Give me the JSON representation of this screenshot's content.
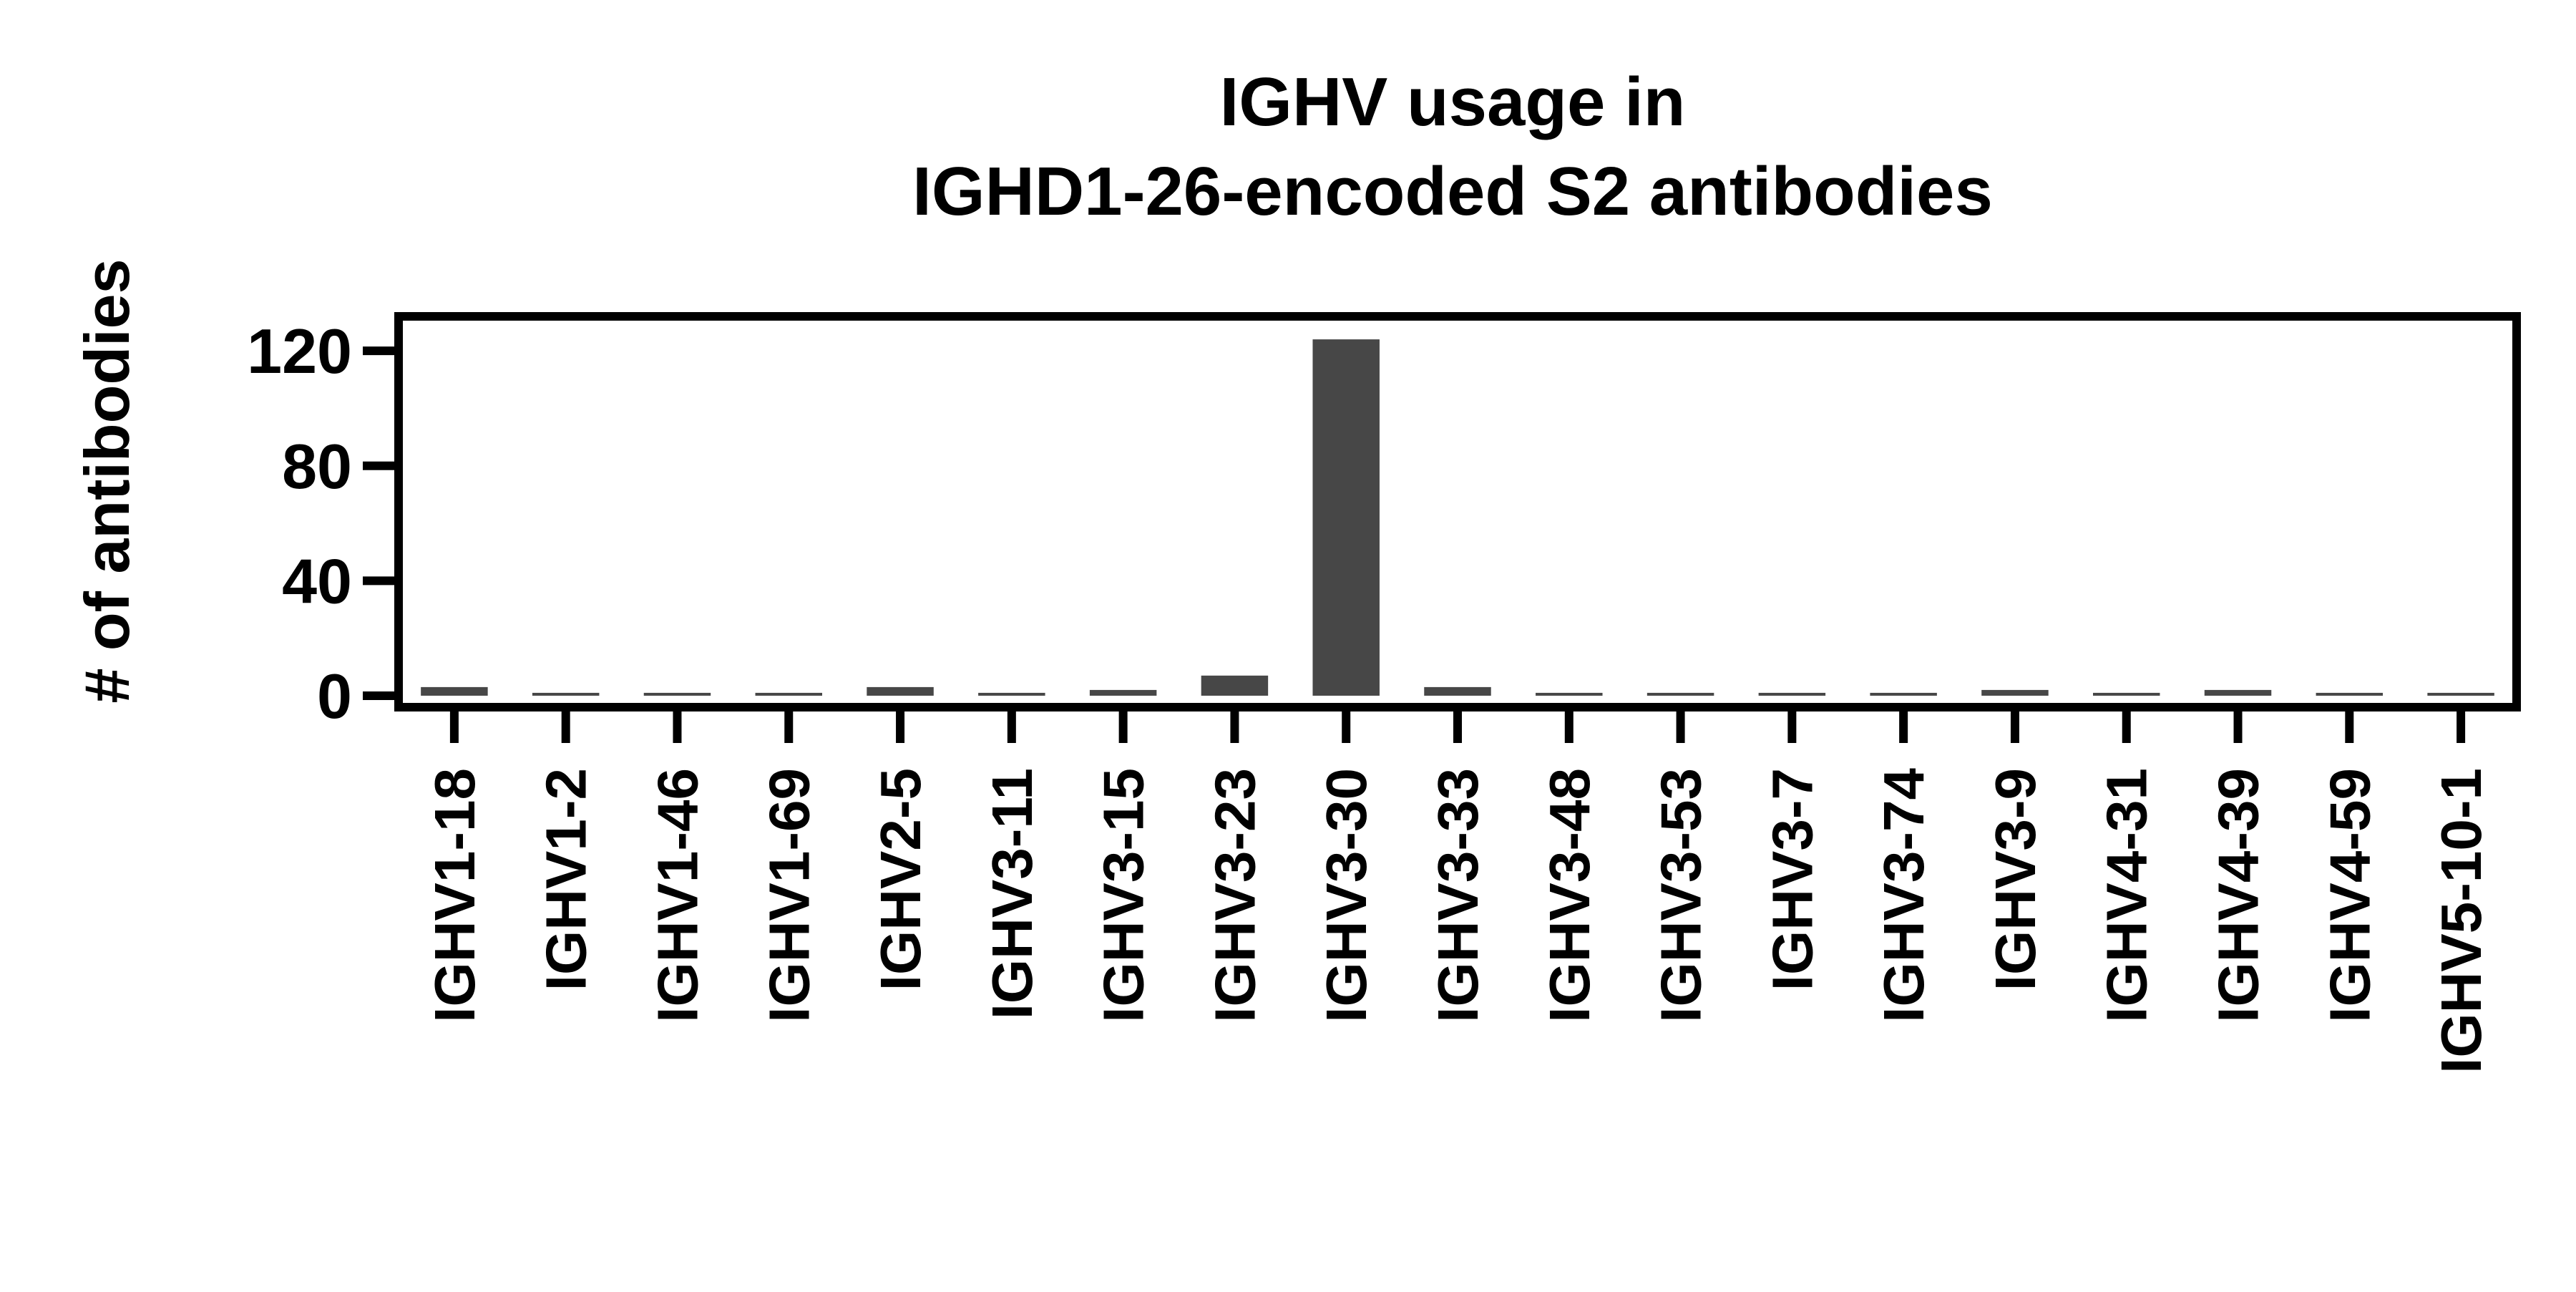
{
  "chart_data": {
    "type": "bar",
    "title": [
      "IGHV usage in",
      "IGHD1-26-encoded S2 antibodies"
    ],
    "xlabel": "",
    "ylabel": "# of antibodies",
    "categories": [
      "IGHV1-18",
      "IGHV1-2",
      "IGHV1-46",
      "IGHV1-69",
      "IGHV2-5",
      "IGHV3-11",
      "IGHV3-15",
      "IGHV3-23",
      "IGHV3-30",
      "IGHV3-33",
      "IGHV3-48",
      "IGHV3-53",
      "IGHV3-7",
      "IGHV3-74",
      "IGHV3-9",
      "IGHV4-31",
      "IGHV4-39",
      "IGHV4-59",
      "IGHV5-10-1"
    ],
    "values": [
      3,
      1,
      1,
      1,
      3,
      1,
      2,
      7,
      124,
      3,
      1,
      1,
      1,
      1,
      2,
      1,
      2,
      1,
      1
    ],
    "ylim": [
      -4,
      132
    ],
    "yticks": [
      0,
      40,
      80,
      120
    ],
    "grid": false,
    "legend": "none",
    "bar_color": "#474747"
  }
}
